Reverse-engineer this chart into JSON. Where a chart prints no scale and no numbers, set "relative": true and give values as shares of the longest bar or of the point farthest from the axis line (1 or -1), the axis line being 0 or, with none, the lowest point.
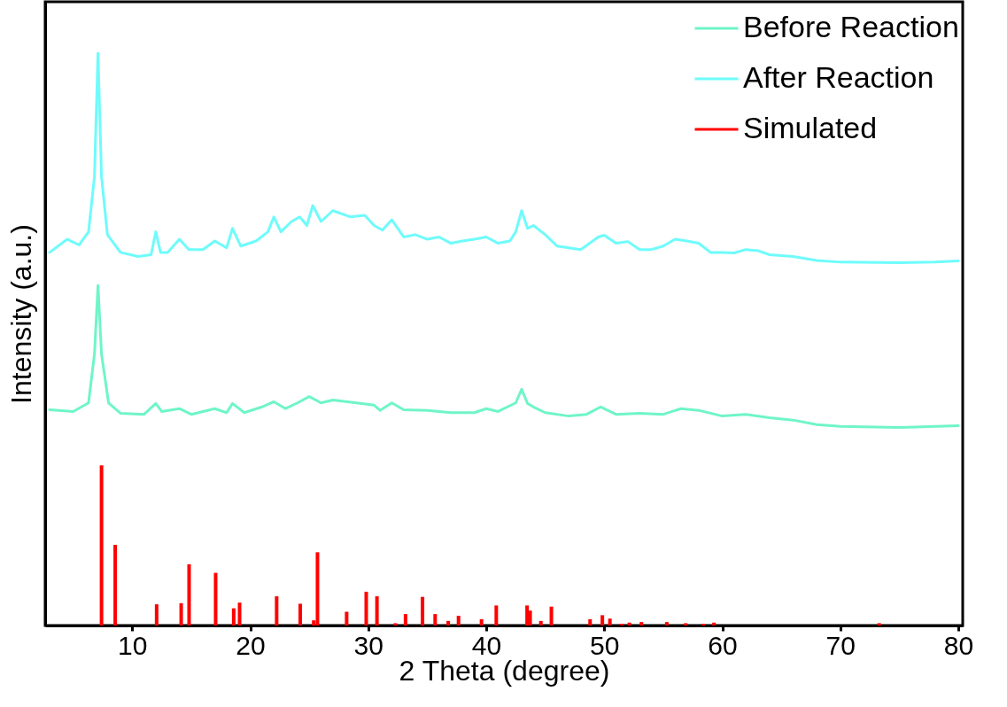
{
  "chart_data": {
    "type": "line",
    "relative": true,
    "xlabel": "2 Theta (degree)",
    "ylabel": "Intensity (a.u.)",
    "xlim": [
      3,
      80
    ],
    "xticks": [
      10,
      20,
      30,
      40,
      50,
      60,
      70,
      80
    ],
    "legend": "top right",
    "series": [
      {
        "name": "Before Reaction",
        "color": "#6ff5c8",
        "x": [
          3,
          5,
          6.3,
          6.8,
          7.1,
          7.4,
          8,
          9,
          11,
          12,
          12.5,
          14,
          15,
          17,
          18,
          18.5,
          19.5,
          21,
          22,
          23,
          24,
          25,
          26,
          27,
          29,
          30.5,
          31,
          32,
          33,
          35,
          37,
          39,
          40,
          41,
          42.5,
          43,
          43.5,
          44,
          45,
          47,
          48.5,
          49.7,
          51,
          53,
          55,
          56.5,
          58,
          60,
          62,
          64,
          66,
          68,
          70,
          75,
          80
        ],
        "values": [
          0.377,
          0.374,
          0.389,
          0.474,
          0.594,
          0.474,
          0.389,
          0.371,
          0.369,
          0.388,
          0.374,
          0.379,
          0.369,
          0.379,
          0.372,
          0.388,
          0.372,
          0.382,
          0.391,
          0.379,
          0.389,
          0.4,
          0.389,
          0.394,
          0.389,
          0.385,
          0.376,
          0.389,
          0.377,
          0.376,
          0.372,
          0.372,
          0.379,
          0.374,
          0.389,
          0.413,
          0.388,
          0.382,
          0.372,
          0.366,
          0.369,
          0.382,
          0.369,
          0.371,
          0.369,
          0.379,
          0.376,
          0.366,
          0.369,
          0.363,
          0.359,
          0.351,
          0.348,
          0.346,
          0.349
        ]
      },
      {
        "name": "After Reaction",
        "color": "#6ffbfb",
        "x": [
          3,
          4.5,
          5.5,
          6.3,
          6.8,
          7.1,
          7.4,
          7.9,
          9,
          10.5,
          11.6,
          12,
          12.4,
          13,
          14,
          14.8,
          16,
          17,
          18,
          18.5,
          19.2,
          20.5,
          21.5,
          22,
          22.6,
          23.5,
          24.2,
          24.8,
          25.3,
          26,
          27,
          28.5,
          29.7,
          30.5,
          31.2,
          32,
          33,
          34,
          35,
          36,
          37,
          38,
          39,
          40,
          41,
          42,
          42.5,
          43,
          43.5,
          44,
          45,
          46,
          48,
          49.5,
          50,
          51,
          52,
          53,
          54,
          55,
          56,
          57,
          58,
          59,
          60,
          61,
          62,
          63,
          64,
          66,
          68,
          70,
          75,
          78,
          80
        ],
        "values": [
          0.652,
          0.675,
          0.665,
          0.688,
          0.784,
          1,
          0.784,
          0.683,
          0.652,
          0.645,
          0.648,
          0.688,
          0.652,
          0.652,
          0.675,
          0.657,
          0.657,
          0.672,
          0.66,
          0.694,
          0.663,
          0.672,
          0.688,
          0.714,
          0.688,
          0.706,
          0.714,
          0.699,
          0.734,
          0.706,
          0.725,
          0.714,
          0.717,
          0.699,
          0.691,
          0.709,
          0.679,
          0.683,
          0.675,
          0.679,
          0.668,
          0.672,
          0.675,
          0.679,
          0.668,
          0.672,
          0.688,
          0.725,
          0.694,
          0.699,
          0.683,
          0.663,
          0.657,
          0.679,
          0.682,
          0.668,
          0.671,
          0.657,
          0.657,
          0.663,
          0.675,
          0.672,
          0.668,
          0.652,
          0.652,
          0.651,
          0.657,
          0.655,
          0.648,
          0.645,
          0.638,
          0.635,
          0.634,
          0.635,
          0.637
        ]
      },
      {
        "name": "Simulated",
        "color": "#ff0000",
        "type": "bar",
        "x": [
          7.4,
          8.56,
          12.07,
          14.15,
          14.82,
          17.07,
          18.6,
          19.1,
          22.24,
          24.24,
          25.38,
          25.7,
          28.17,
          29.83,
          30.74,
          32.3,
          33.16,
          34.6,
          35.67,
          36.78,
          37.65,
          39.6,
          40.85,
          43.46,
          43.72,
          44.63,
          45.52,
          48.8,
          49.84,
          50.48,
          51.5,
          52.13,
          53.15,
          55.3,
          56.9,
          58.4,
          59.3,
          73.3
        ],
        "values": [
          0.28,
          0.141,
          0.037,
          0.039,
          0.107,
          0.092,
          0.03,
          0.04,
          0.051,
          0.038,
          0.009,
          0.128,
          0.024,
          0.059,
          0.051,
          0.004,
          0.02,
          0.05,
          0.02,
          0.008,
          0.017,
          0.011,
          0.035,
          0.035,
          0.026,
          0.008,
          0.033,
          0.011,
          0.018,
          0.012,
          0.003,
          0.005,
          0.006,
          0.006,
          0.004,
          0.003,
          0.005,
          0.004
        ]
      }
    ]
  }
}
